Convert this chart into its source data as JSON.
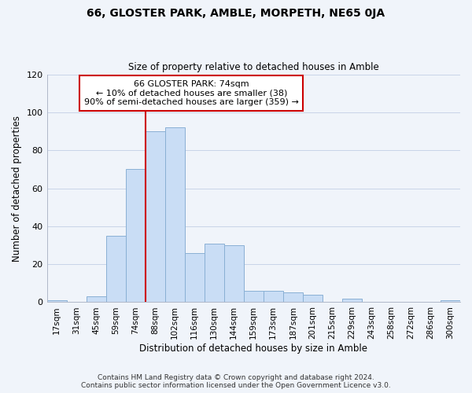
{
  "title": "66, GLOSTER PARK, AMBLE, MORPETH, NE65 0JA",
  "subtitle": "Size of property relative to detached houses in Amble",
  "xlabel": "Distribution of detached houses by size in Amble",
  "ylabel": "Number of detached properties",
  "footer_line1": "Contains HM Land Registry data © Crown copyright and database right 2024.",
  "footer_line2": "Contains public sector information licensed under the Open Government Licence v3.0.",
  "bin_labels": [
    "17sqm",
    "31sqm",
    "45sqm",
    "59sqm",
    "74sqm",
    "88sqm",
    "102sqm",
    "116sqm",
    "130sqm",
    "144sqm",
    "159sqm",
    "173sqm",
    "187sqm",
    "201sqm",
    "215sqm",
    "229sqm",
    "243sqm",
    "258sqm",
    "272sqm",
    "286sqm",
    "300sqm"
  ],
  "bar_values": [
    1,
    0,
    3,
    35,
    70,
    90,
    92,
    26,
    31,
    30,
    6,
    6,
    5,
    4,
    0,
    2,
    0,
    0,
    0,
    0,
    1
  ],
  "bar_color": "#c9ddf5",
  "bar_edge_color": "#8ab0d4",
  "vline_x": 4.5,
  "vline_color": "#cc0000",
  "annotation_title": "66 GLOSTER PARK: 74sqm",
  "annotation_line1": "← 10% of detached houses are smaller (38)",
  "annotation_line2": "90% of semi-detached houses are larger (359) →",
  "annotation_box_color": "#ffffff",
  "annotation_box_edge": "#cc0000",
  "ylim": [
    0,
    120
  ],
  "yticks": [
    0,
    20,
    40,
    60,
    80,
    100,
    120
  ],
  "background_color": "#f0f4fa",
  "grid_color": "#c8d4e8"
}
